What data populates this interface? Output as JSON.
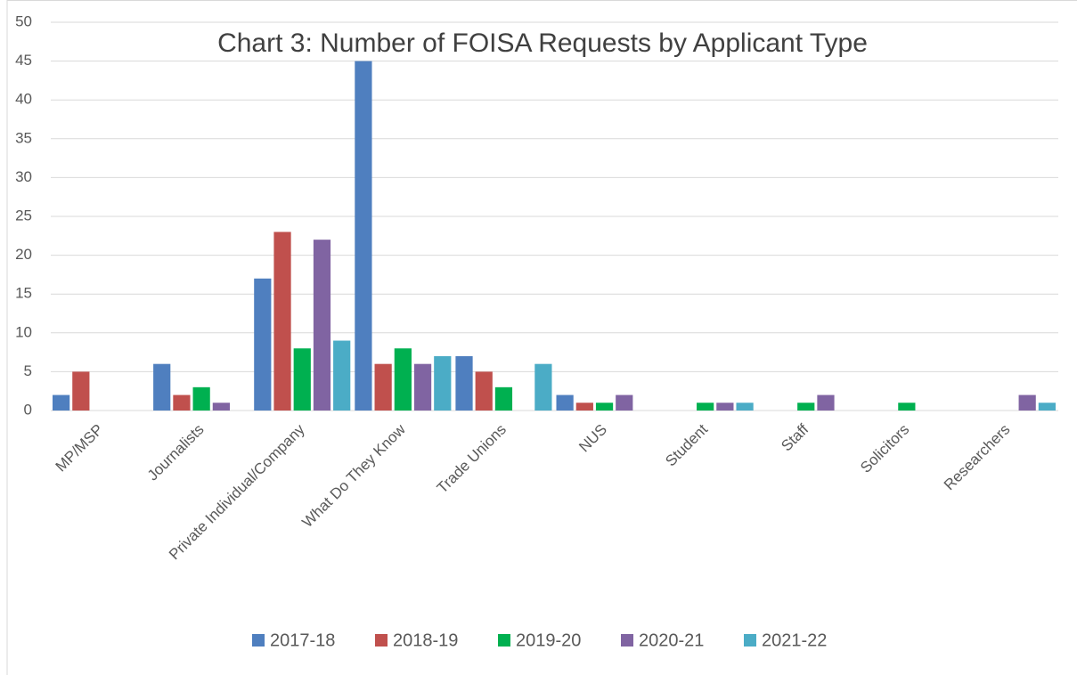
{
  "chart_data": {
    "type": "bar",
    "title": "Chart 3: Number of FOISA Requests by Applicant Type",
    "categories": [
      "MP/MSP",
      "Journalists",
      "Private Individual/Company",
      "What Do They Know",
      "Trade Unions",
      "NUS",
      "Student",
      "Staff",
      "Solicitors",
      "Researchers"
    ],
    "series": [
      {
        "name": "2017-18",
        "color": "#4f7fbf",
        "values": [
          2,
          6,
          17,
          45,
          7,
          2,
          0,
          0,
          0,
          0
        ]
      },
      {
        "name": "2018-19",
        "color": "#c0504d",
        "values": [
          5,
          2,
          23,
          6,
          5,
          1,
          0,
          0,
          0,
          0
        ]
      },
      {
        "name": "2019-20",
        "color": "#00b050",
        "values": [
          0,
          3,
          8,
          8,
          3,
          1,
          1,
          1,
          1,
          0
        ]
      },
      {
        "name": "2020-21",
        "color": "#8064a2",
        "values": [
          0,
          1,
          22,
          6,
          0,
          2,
          1,
          2,
          0,
          2
        ]
      },
      {
        "name": "2021-22",
        "color": "#4bacc6",
        "values": [
          0,
          0,
          9,
          7,
          6,
          0,
          1,
          0,
          0,
          1
        ]
      }
    ],
    "ylim": [
      0,
      50
    ],
    "yticks": [
      0,
      5,
      10,
      15,
      20,
      25,
      30,
      35,
      40,
      45,
      50
    ],
    "grid": true,
    "legend": "bottom"
  }
}
